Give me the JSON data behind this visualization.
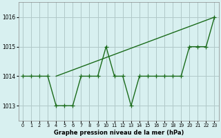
{
  "x": [
    0,
    1,
    2,
    3,
    4,
    5,
    6,
    7,
    8,
    9,
    10,
    11,
    12,
    13,
    14,
    15,
    16,
    17,
    18,
    19,
    20,
    21,
    22,
    23
  ],
  "line1": [
    1014,
    1014,
    1014,
    1014,
    1013,
    1013,
    1013,
    1014,
    1014,
    1014,
    1015,
    1014,
    1014,
    1013,
    1014,
    1014,
    1014,
    1014,
    1014,
    1014,
    1015,
    1015,
    1015,
    1016
  ],
  "line2_x": [
    4,
    23
  ],
  "line2_y": [
    1014,
    1016
  ],
  "line_color": "#1a6b1a",
  "bg_color": "#d8f0f0",
  "grid_color": "#b0c8c8",
  "xlabel": "Graphe pression niveau de la mer (hPa)",
  "ylim": [
    1012.5,
    1016.5
  ],
  "xlim": [
    -0.5,
    23.5
  ],
  "yticks": [
    1013,
    1014,
    1015,
    1016
  ],
  "xticks": [
    0,
    1,
    2,
    3,
    4,
    5,
    6,
    7,
    8,
    9,
    10,
    11,
    12,
    13,
    14,
    15,
    16,
    17,
    18,
    19,
    20,
    21,
    22,
    23
  ],
  "marker": "+",
  "markersize": 4,
  "linewidth": 1.0
}
